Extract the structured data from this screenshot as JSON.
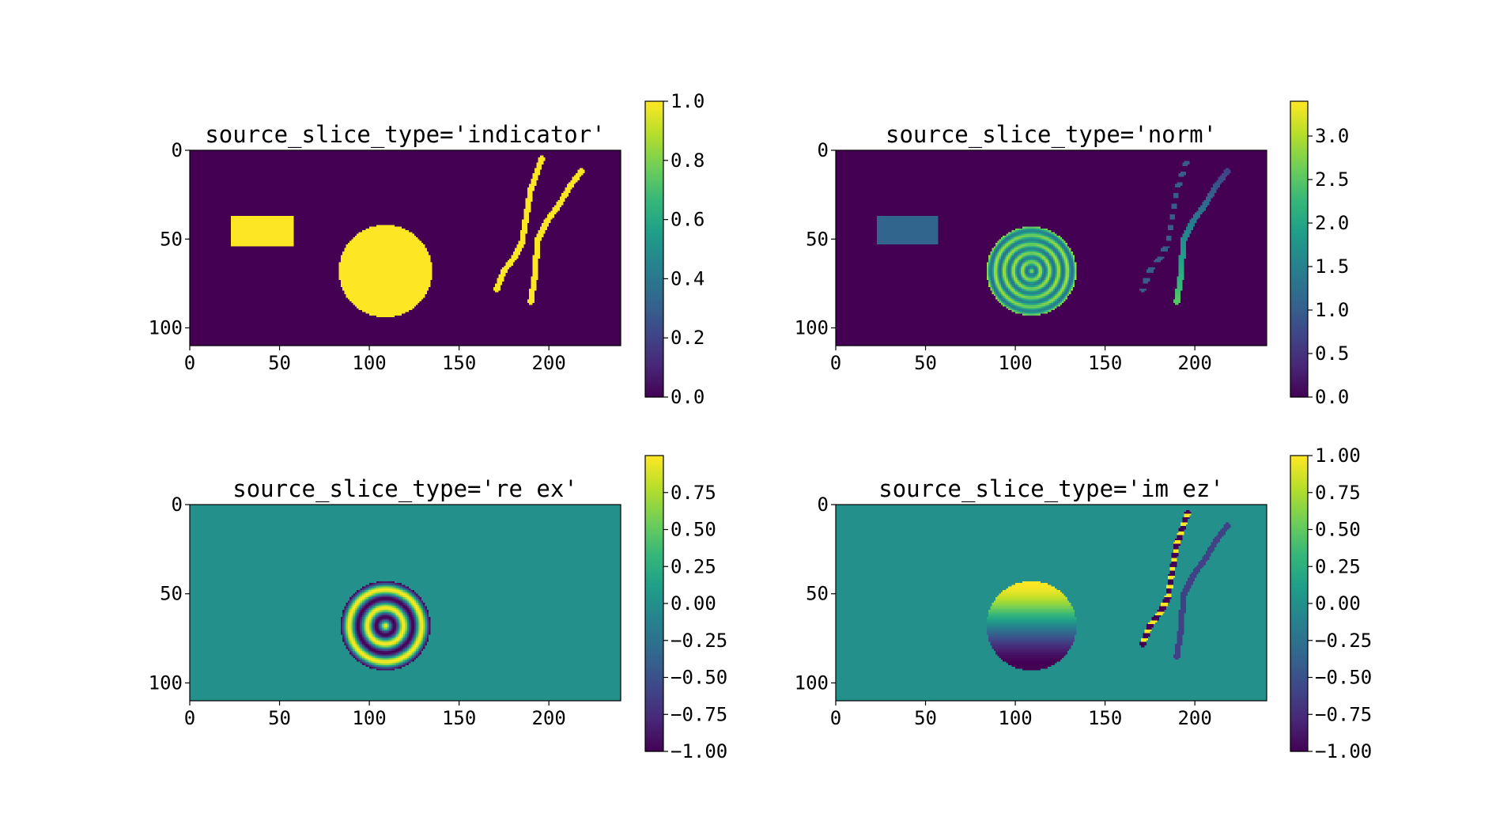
{
  "colormap": "viridis",
  "colors": {
    "viridis_stops": [
      "#440154",
      "#482878",
      "#3e4989",
      "#31688e",
      "#26828e",
      "#1f9e89",
      "#35b779",
      "#6ece58",
      "#b5de2b",
      "#fde725"
    ],
    "frame": "#000000",
    "background": "#ffffff"
  },
  "chart_data": [
    {
      "type": "heatmap",
      "title": "source_slice_type='indicator'",
      "xlim": [
        0,
        240
      ],
      "ylim": [
        110,
        0
      ],
      "xticks": [
        "0",
        "50",
        "100",
        "150",
        "200"
      ],
      "yticks": [
        "0",
        "50",
        "100"
      ],
      "colorbar": {
        "min": 0.0,
        "max": 1.0,
        "ticks": [
          "0.0",
          "0.2",
          "0.4",
          "0.6",
          "0.8",
          "1.0"
        ]
      },
      "field": "indicator",
      "objects": {
        "rectangle": {
          "x": [
            23,
            58
          ],
          "y": [
            37,
            54
          ]
        },
        "circle": {
          "cx": 109,
          "cy": 68,
          "r": 26
        },
        "curves": [
          {
            "points": [
              [
                171,
                78
              ],
              [
                175,
                68
              ],
              [
                181,
                60
              ],
              [
                185,
                52
              ],
              [
                187,
                40
              ],
              [
                190,
                22
              ],
              [
                196,
                5
              ]
            ]
          },
          {
            "points": [
              [
                190,
                85
              ],
              [
                192,
                72
              ],
              [
                193,
                60
              ],
              [
                194,
                50
              ],
              [
                199,
                40
              ],
              [
                206,
                30
              ],
              [
                212,
                20
              ],
              [
                218,
                12
              ]
            ]
          }
        ]
      }
    },
    {
      "type": "heatmap",
      "title": "source_slice_type='norm'",
      "xlim": [
        0,
        240
      ],
      "ylim": [
        110,
        0
      ],
      "xticks": [
        "0",
        "50",
        "100",
        "150",
        "200"
      ],
      "yticks": [
        "0",
        "50",
        "100"
      ],
      "colorbar": {
        "min": 0.0,
        "max": 3.4,
        "ticks": [
          "0.0",
          "0.5",
          "1.0",
          "1.5",
          "2.0",
          "2.5",
          "3.0"
        ]
      },
      "field": "norm",
      "objects": {
        "rectangle": {
          "x": [
            23,
            57
          ],
          "y": [
            37,
            53
          ],
          "value": 1.1
        },
        "circle": {
          "cx": 109,
          "cy": 68,
          "r": 25,
          "value_range": [
            1.2,
            3.0
          ]
        },
        "curves": [
          {
            "points": [
              [
                171,
                78
              ],
              [
                175,
                68
              ],
              [
                181,
                60
              ],
              [
                185,
                52
              ],
              [
                187,
                40
              ],
              [
                190,
                22
              ],
              [
                196,
                5
              ]
            ],
            "value": 1.0
          },
          {
            "points": [
              [
                190,
                85
              ],
              [
                192,
                72
              ],
              [
                193,
                60
              ],
              [
                194,
                50
              ],
              [
                199,
                40
              ],
              [
                206,
                30
              ],
              [
                212,
                20
              ],
              [
                218,
                12
              ]
            ],
            "value_range": [
              2.5,
              0.7
            ]
          }
        ]
      }
    },
    {
      "type": "heatmap",
      "title": "source_slice_type='re ex'",
      "xlim": [
        0,
        240
      ],
      "ylim": [
        110,
        0
      ],
      "xticks": [
        "0",
        "50",
        "100",
        "150",
        "200"
      ],
      "yticks": [
        "0",
        "50",
        "100"
      ],
      "colorbar": {
        "min": -1.0,
        "max": 1.0,
        "ticks": [
          "−1.00",
          "−0.75",
          "−0.50",
          "−0.25",
          "0.00",
          "0.25",
          "0.50",
          "0.75"
        ]
      },
      "field": "re_ex",
      "objects": {
        "circle": {
          "cx": 109,
          "cy": 68,
          "r": 25,
          "pattern": "concentric-rings"
        }
      }
    },
    {
      "type": "heatmap",
      "title": "source_slice_type='im ez'",
      "xlim": [
        0,
        240
      ],
      "ylim": [
        110,
        0
      ],
      "xticks": [
        "0",
        "50",
        "100",
        "150",
        "200"
      ],
      "yticks": [
        "0",
        "50",
        "100"
      ],
      "colorbar": {
        "min": -1.0,
        "max": 1.0,
        "ticks": [
          "−1.00",
          "−0.75",
          "−0.50",
          "−0.25",
          "0.00",
          "0.25",
          "0.50",
          "0.75",
          "1.00"
        ]
      },
      "field": "im_ez",
      "objects": {
        "circle": {
          "cx": 109,
          "cy": 68,
          "r": 25,
          "pattern": "vertical-gradient"
        },
        "curves": [
          {
            "points": [
              [
                171,
                78
              ],
              [
                175,
                68
              ],
              [
                181,
                60
              ],
              [
                185,
                52
              ],
              [
                187,
                40
              ],
              [
                190,
                22
              ],
              [
                196,
                5
              ]
            ],
            "pattern": "alternating"
          },
          {
            "points": [
              [
                190,
                85
              ],
              [
                192,
                72
              ],
              [
                193,
                60
              ],
              [
                194,
                50
              ],
              [
                199,
                40
              ],
              [
                206,
                30
              ],
              [
                212,
                20
              ],
              [
                218,
                12
              ]
            ],
            "value": -0.6
          }
        ]
      }
    }
  ]
}
